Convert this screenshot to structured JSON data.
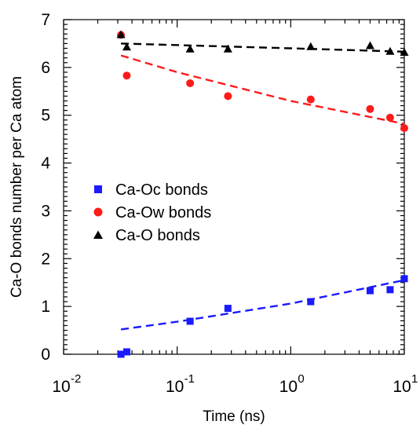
{
  "chart_data": {
    "type": "scatter",
    "xlabel": "Time (ns)",
    "ylabel": "Ca-O bonds number per Ca atom",
    "xscale": "log",
    "xlim": [
      0.01,
      10
    ],
    "ylim": [
      0,
      7
    ],
    "x_ticks": [
      {
        "base": "10",
        "exp": "-2"
      },
      {
        "base": "10",
        "exp": "-1"
      },
      {
        "base": "10",
        "exp": "0"
      },
      {
        "base": "10",
        "exp": "1"
      }
    ],
    "y_ticks": [
      "0",
      "1",
      "2",
      "3",
      "4",
      "5",
      "6",
      "7"
    ],
    "legend_position": "center-left",
    "series": [
      {
        "name": "Ca-Oc bonds",
        "marker": "square",
        "color": "#1a1aff",
        "points": [
          [
            0.032,
            0.0
          ],
          [
            0.036,
            0.05
          ],
          [
            0.13,
            0.69
          ],
          [
            0.28,
            0.96
          ],
          [
            1.5,
            1.1
          ],
          [
            5.0,
            1.33
          ],
          [
            7.5,
            1.35
          ],
          [
            10.0,
            1.58
          ]
        ],
        "fit": [
          [
            0.032,
            0.52
          ],
          [
            0.1,
            0.68
          ],
          [
            1.0,
            1.06
          ],
          [
            10.0,
            1.55
          ]
        ]
      },
      {
        "name": "Ca-Ow bonds",
        "marker": "circle",
        "color": "#ff1a1a",
        "points": [
          [
            0.032,
            6.68
          ],
          [
            0.036,
            5.83
          ],
          [
            0.13,
            5.67
          ],
          [
            0.28,
            5.4
          ],
          [
            1.5,
            5.33
          ],
          [
            5.0,
            5.13
          ],
          [
            7.5,
            4.95
          ],
          [
            10.0,
            4.73
          ]
        ],
        "fit": [
          [
            0.032,
            6.25
          ],
          [
            0.1,
            5.9
          ],
          [
            1.0,
            5.3
          ],
          [
            10.0,
            4.82
          ]
        ]
      },
      {
        "name": "Ca-O bonds",
        "marker": "triangle",
        "color": "#000000",
        "points": [
          [
            0.032,
            6.68
          ],
          [
            0.036,
            6.42
          ],
          [
            0.13,
            6.38
          ],
          [
            0.28,
            6.38
          ],
          [
            1.5,
            6.43
          ],
          [
            5.0,
            6.45
          ],
          [
            7.5,
            6.33
          ],
          [
            10.0,
            6.31
          ]
        ],
        "fit": [
          [
            0.032,
            6.5
          ],
          [
            1.0,
            6.4
          ],
          [
            10.0,
            6.33
          ]
        ]
      }
    ]
  }
}
